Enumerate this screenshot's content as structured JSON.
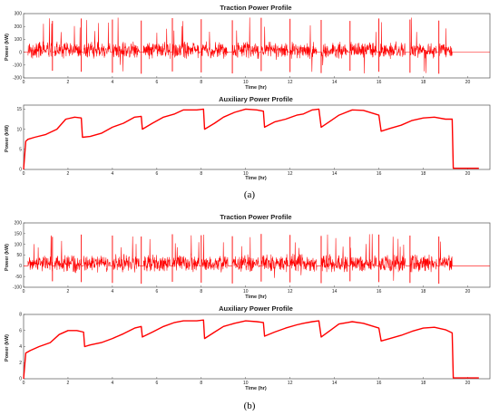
{
  "figure": {
    "caption_a": "(a)",
    "caption_b": "(b)"
  },
  "chart_data": [
    {
      "id": "a-traction",
      "type": "line",
      "title": "Traction Power Profile",
      "xlabel": "Time (hr)",
      "ylabel": "Power (kW)",
      "xlim": [
        0,
        21
      ],
      "ylim": [
        -200,
        300
      ],
      "xticks": [
        0,
        2,
        4,
        6,
        8,
        10,
        12,
        14,
        16,
        18,
        20
      ],
      "yticks": [
        -200,
        -100,
        0,
        100,
        200,
        300
      ],
      "color": "#ff0000",
      "series": [
        {
          "style": "noisy-bursts",
          "bursts": [
            [
              0.2,
              1.3
            ],
            [
              1.4,
              2.6
            ],
            [
              2.7,
              3.9
            ],
            [
              4.0,
              5.2
            ],
            [
              5.4,
              6.6
            ],
            [
              6.7,
              7.9
            ],
            [
              8.0,
              9.2
            ],
            [
              9.4,
              10.6
            ],
            [
              10.7,
              11.9
            ],
            [
              12.0,
              13.2
            ],
            [
              13.4,
              14.6
            ],
            [
              14.7,
              15.9
            ],
            [
              16.0,
              17.2
            ],
            [
              17.4,
              18.6
            ],
            [
              18.7,
              19.3
            ]
          ],
          "noise_range": [
            -60,
            90
          ],
          "spike_max": 270,
          "spike_min": -170,
          "spike_times": [
            1.3,
            2.6,
            4.0,
            5.3,
            6.7,
            8.0,
            9.4,
            10.7,
            12.0,
            13.4,
            14.7,
            16.0,
            17.4,
            18.7
          ],
          "end_x": 19.3,
          "end_value": 0
        }
      ]
    },
    {
      "id": "a-auxiliary",
      "type": "line",
      "title": "Auxiliary Power Profile",
      "xlabel": "Time (hr)",
      "ylabel": "Power (kW)",
      "xlim": [
        0,
        21
      ],
      "ylim": [
        0,
        16
      ],
      "xticks": [
        0,
        2,
        4,
        6,
        8,
        10,
        12,
        14,
        16,
        18,
        20
      ],
      "yticks": [
        0,
        5,
        10,
        15
      ],
      "color": "#ff0000",
      "series": [
        {
          "x": [
            0,
            0.1,
            0.2,
            0.5,
            1.0,
            1.5,
            1.9,
            2.3,
            2.6,
            2.65,
            3.0,
            3.5,
            4.0,
            4.5,
            5.0,
            5.3,
            5.35,
            5.8,
            6.3,
            6.8,
            7.2,
            7.8,
            8.1,
            8.15,
            8.6,
            9.0,
            9.5,
            10.0,
            10.5,
            10.8,
            10.85,
            11.3,
            11.8,
            12.3,
            12.6,
            13.0,
            13.3,
            13.4,
            13.8,
            14.2,
            14.8,
            15.3,
            16.0,
            16.1,
            16.5,
            17.0,
            17.5,
            18.0,
            18.5,
            19.0,
            19.3,
            19.35,
            20.5
          ],
          "y": [
            0,
            7,
            7.5,
            8,
            8.7,
            10,
            12.5,
            13,
            12.8,
            8,
            8.2,
            9,
            10.5,
            11.5,
            13,
            13.2,
            10,
            11.5,
            13,
            13.8,
            14.8,
            14.8,
            15,
            10,
            11.5,
            13,
            14.2,
            15,
            14.8,
            14.5,
            10.5,
            11.8,
            12.5,
            13.5,
            13.8,
            14.8,
            15,
            10.5,
            12,
            13.5,
            14.8,
            14.7,
            13.5,
            9.5,
            10.2,
            11,
            12.2,
            12.8,
            13,
            12.5,
            12.5,
            0.3,
            0.3
          ]
        }
      ]
    },
    {
      "id": "b-traction",
      "type": "line",
      "title": "Traction Power Profile",
      "xlabel": "Time (hr)",
      "ylabel": "Power (kW)",
      "xlim": [
        0,
        21
      ],
      "ylim": [
        -100,
        200
      ],
      "xticks": [
        0,
        2,
        4,
        6,
        8,
        10,
        12,
        14,
        16,
        18,
        20
      ],
      "yticks": [
        -100,
        -50,
        0,
        50,
        100,
        150,
        200
      ],
      "color": "#ff0000",
      "series": [
        {
          "style": "noisy-bursts",
          "bursts": [
            [
              0.2,
              1.3
            ],
            [
              1.4,
              2.6
            ],
            [
              2.7,
              3.9
            ],
            [
              4.0,
              5.2
            ],
            [
              5.4,
              6.6
            ],
            [
              6.7,
              7.9
            ],
            [
              8.0,
              9.2
            ],
            [
              9.4,
              10.6
            ],
            [
              10.7,
              11.9
            ],
            [
              12.0,
              13.2
            ],
            [
              13.4,
              14.6
            ],
            [
              14.7,
              15.9
            ],
            [
              16.0,
              17.2
            ],
            [
              17.4,
              18.6
            ],
            [
              18.7,
              19.3
            ]
          ],
          "noise_range": [
            -35,
            60
          ],
          "spike_max": 150,
          "spike_min": -85,
          "spike_times": [
            1.3,
            2.6,
            4.0,
            5.3,
            6.7,
            8.0,
            9.4,
            10.7,
            12.0,
            13.4,
            14.7,
            16.0,
            17.4,
            18.7
          ],
          "end_x": 19.3,
          "end_value": 0
        }
      ]
    },
    {
      "id": "b-auxiliary",
      "type": "line",
      "title": "Auxiliary Power Profile",
      "xlabel": "Time (hr)",
      "ylabel": "Power (kW)",
      "xlim": [
        0,
        21
      ],
      "ylim": [
        0,
        8
      ],
      "xticks": [
        0,
        2,
        4,
        6,
        8,
        10,
        12,
        14,
        16,
        18,
        20
      ],
      "yticks": [
        0,
        2,
        4,
        6,
        8
      ],
      "color": "#ff0000",
      "series": [
        {
          "x": [
            0,
            0.1,
            0.3,
            0.7,
            1.2,
            1.6,
            2.0,
            2.4,
            2.7,
            2.75,
            3.0,
            3.5,
            4.0,
            4.5,
            5.0,
            5.3,
            5.35,
            5.8,
            6.3,
            6.8,
            7.2,
            7.8,
            8.1,
            8.15,
            8.6,
            9.0,
            9.5,
            10.0,
            10.5,
            10.8,
            10.85,
            11.3,
            11.8,
            12.3,
            12.6,
            13.0,
            13.3,
            13.4,
            13.8,
            14.2,
            14.8,
            15.3,
            16.0,
            16.1,
            16.5,
            17.0,
            17.5,
            18.0,
            18.5,
            19.0,
            19.3,
            19.35,
            20.5
          ],
          "y": [
            0,
            3.2,
            3.5,
            4.0,
            4.5,
            5.5,
            6.0,
            6.0,
            5.8,
            4.0,
            4.2,
            4.5,
            5.0,
            5.6,
            6.3,
            6.5,
            5.2,
            5.8,
            6.5,
            7.0,
            7.2,
            7.2,
            7.3,
            5.0,
            5.8,
            6.5,
            6.9,
            7.2,
            7.1,
            7.0,
            5.3,
            5.8,
            6.3,
            6.7,
            6.9,
            7.1,
            7.2,
            5.2,
            6.0,
            6.8,
            7.1,
            6.9,
            6.3,
            4.7,
            5.0,
            5.4,
            5.9,
            6.3,
            6.4,
            6.1,
            5.7,
            0.1,
            0.1
          ]
        }
      ]
    }
  ]
}
